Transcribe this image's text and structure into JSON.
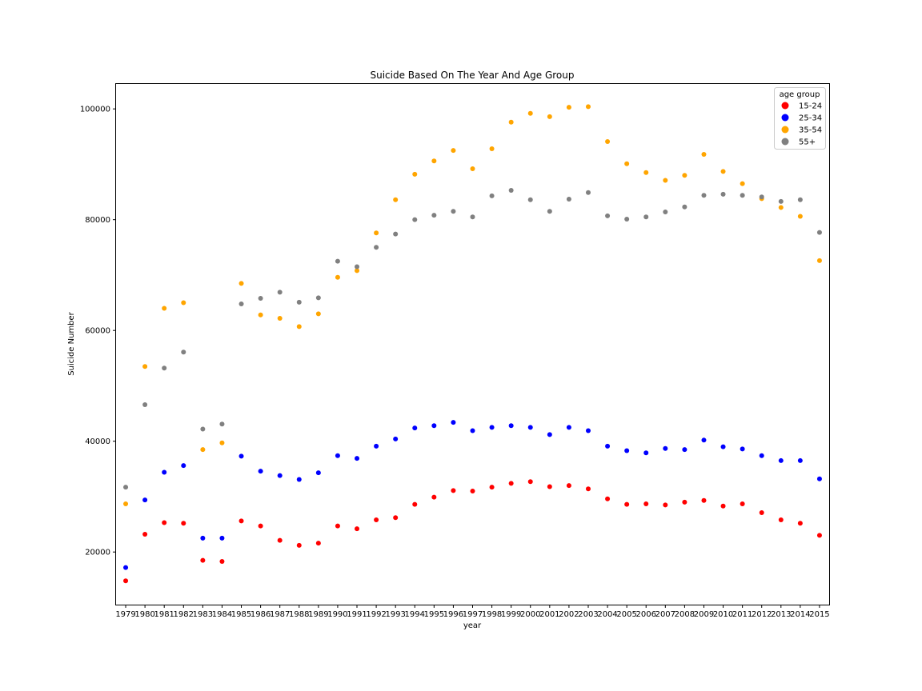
{
  "chart_data": {
    "type": "scatter",
    "title": "Suicide Based On The Year And Age Group",
    "xlabel": "year",
    "ylabel": "Suicide Number",
    "x": [
      1979,
      1980,
      1981,
      1982,
      1983,
      1984,
      1985,
      1986,
      1987,
      1988,
      1989,
      1990,
      1991,
      1992,
      1993,
      1994,
      1995,
      1996,
      1997,
      1998,
      1999,
      2000,
      2001,
      2002,
      2003,
      2004,
      2005,
      2006,
      2007,
      2008,
      2009,
      2010,
      2011,
      2012,
      2013,
      2014,
      2015
    ],
    "y_ticks": [
      20000,
      40000,
      60000,
      80000,
      100000
    ],
    "ylim": [
      10500,
      104500
    ],
    "grid": false,
    "legend": {
      "title": "age group",
      "placement": "top-right"
    },
    "series": [
      {
        "name": "15-24",
        "color": "#ff0000",
        "values": [
          14800,
          23200,
          25300,
          25200,
          18500,
          18300,
          25600,
          24700,
          22100,
          21200,
          21600,
          24700,
          24200,
          25800,
          26200,
          28600,
          29900,
          31100,
          31000,
          31700,
          32400,
          32700,
          31800,
          32000,
          31400,
          29600,
          28600,
          28700,
          28500,
          29000,
          29300,
          28300,
          28700,
          27100,
          25800,
          25200,
          23000
        ]
      },
      {
        "name": "25-34",
        "color": "#0000ff",
        "values": [
          17200,
          29400,
          34400,
          35600,
          22500,
          22500,
          37300,
          34600,
          33800,
          33100,
          34300,
          37400,
          36900,
          39100,
          40400,
          42400,
          42800,
          43400,
          41900,
          42500,
          42800,
          42500,
          41200,
          42500,
          41900,
          39100,
          38300,
          37900,
          38700,
          38500,
          40200,
          39000,
          38600,
          37400,
          36500,
          36500,
          33200
        ]
      },
      {
        "name": "35-54",
        "color": "#ffa500",
        "values": [
          28700,
          53500,
          64000,
          65000,
          38500,
          39700,
          68500,
          62800,
          62200,
          60700,
          63000,
          69600,
          70800,
          77600,
          83600,
          88200,
          90600,
          92500,
          89200,
          92800,
          97600,
          99200,
          98600,
          100300,
          100400,
          94100,
          90100,
          88500,
          87100,
          88000,
          91800,
          88700,
          86500,
          83800,
          82200,
          80600,
          72600
        ]
      },
      {
        "name": "55+",
        "color": "#808080",
        "values": [
          31700,
          46600,
          53200,
          56100,
          42200,
          43100,
          64800,
          65800,
          66900,
          65100,
          65900,
          72500,
          71500,
          75000,
          77400,
          80000,
          80800,
          81500,
          80500,
          84300,
          85300,
          83600,
          81500,
          83700,
          84900,
          80700,
          80100,
          80500,
          81400,
          82300,
          84400,
          84600,
          84400,
          84100,
          83300,
          83600,
          77700
        ]
      }
    ]
  }
}
